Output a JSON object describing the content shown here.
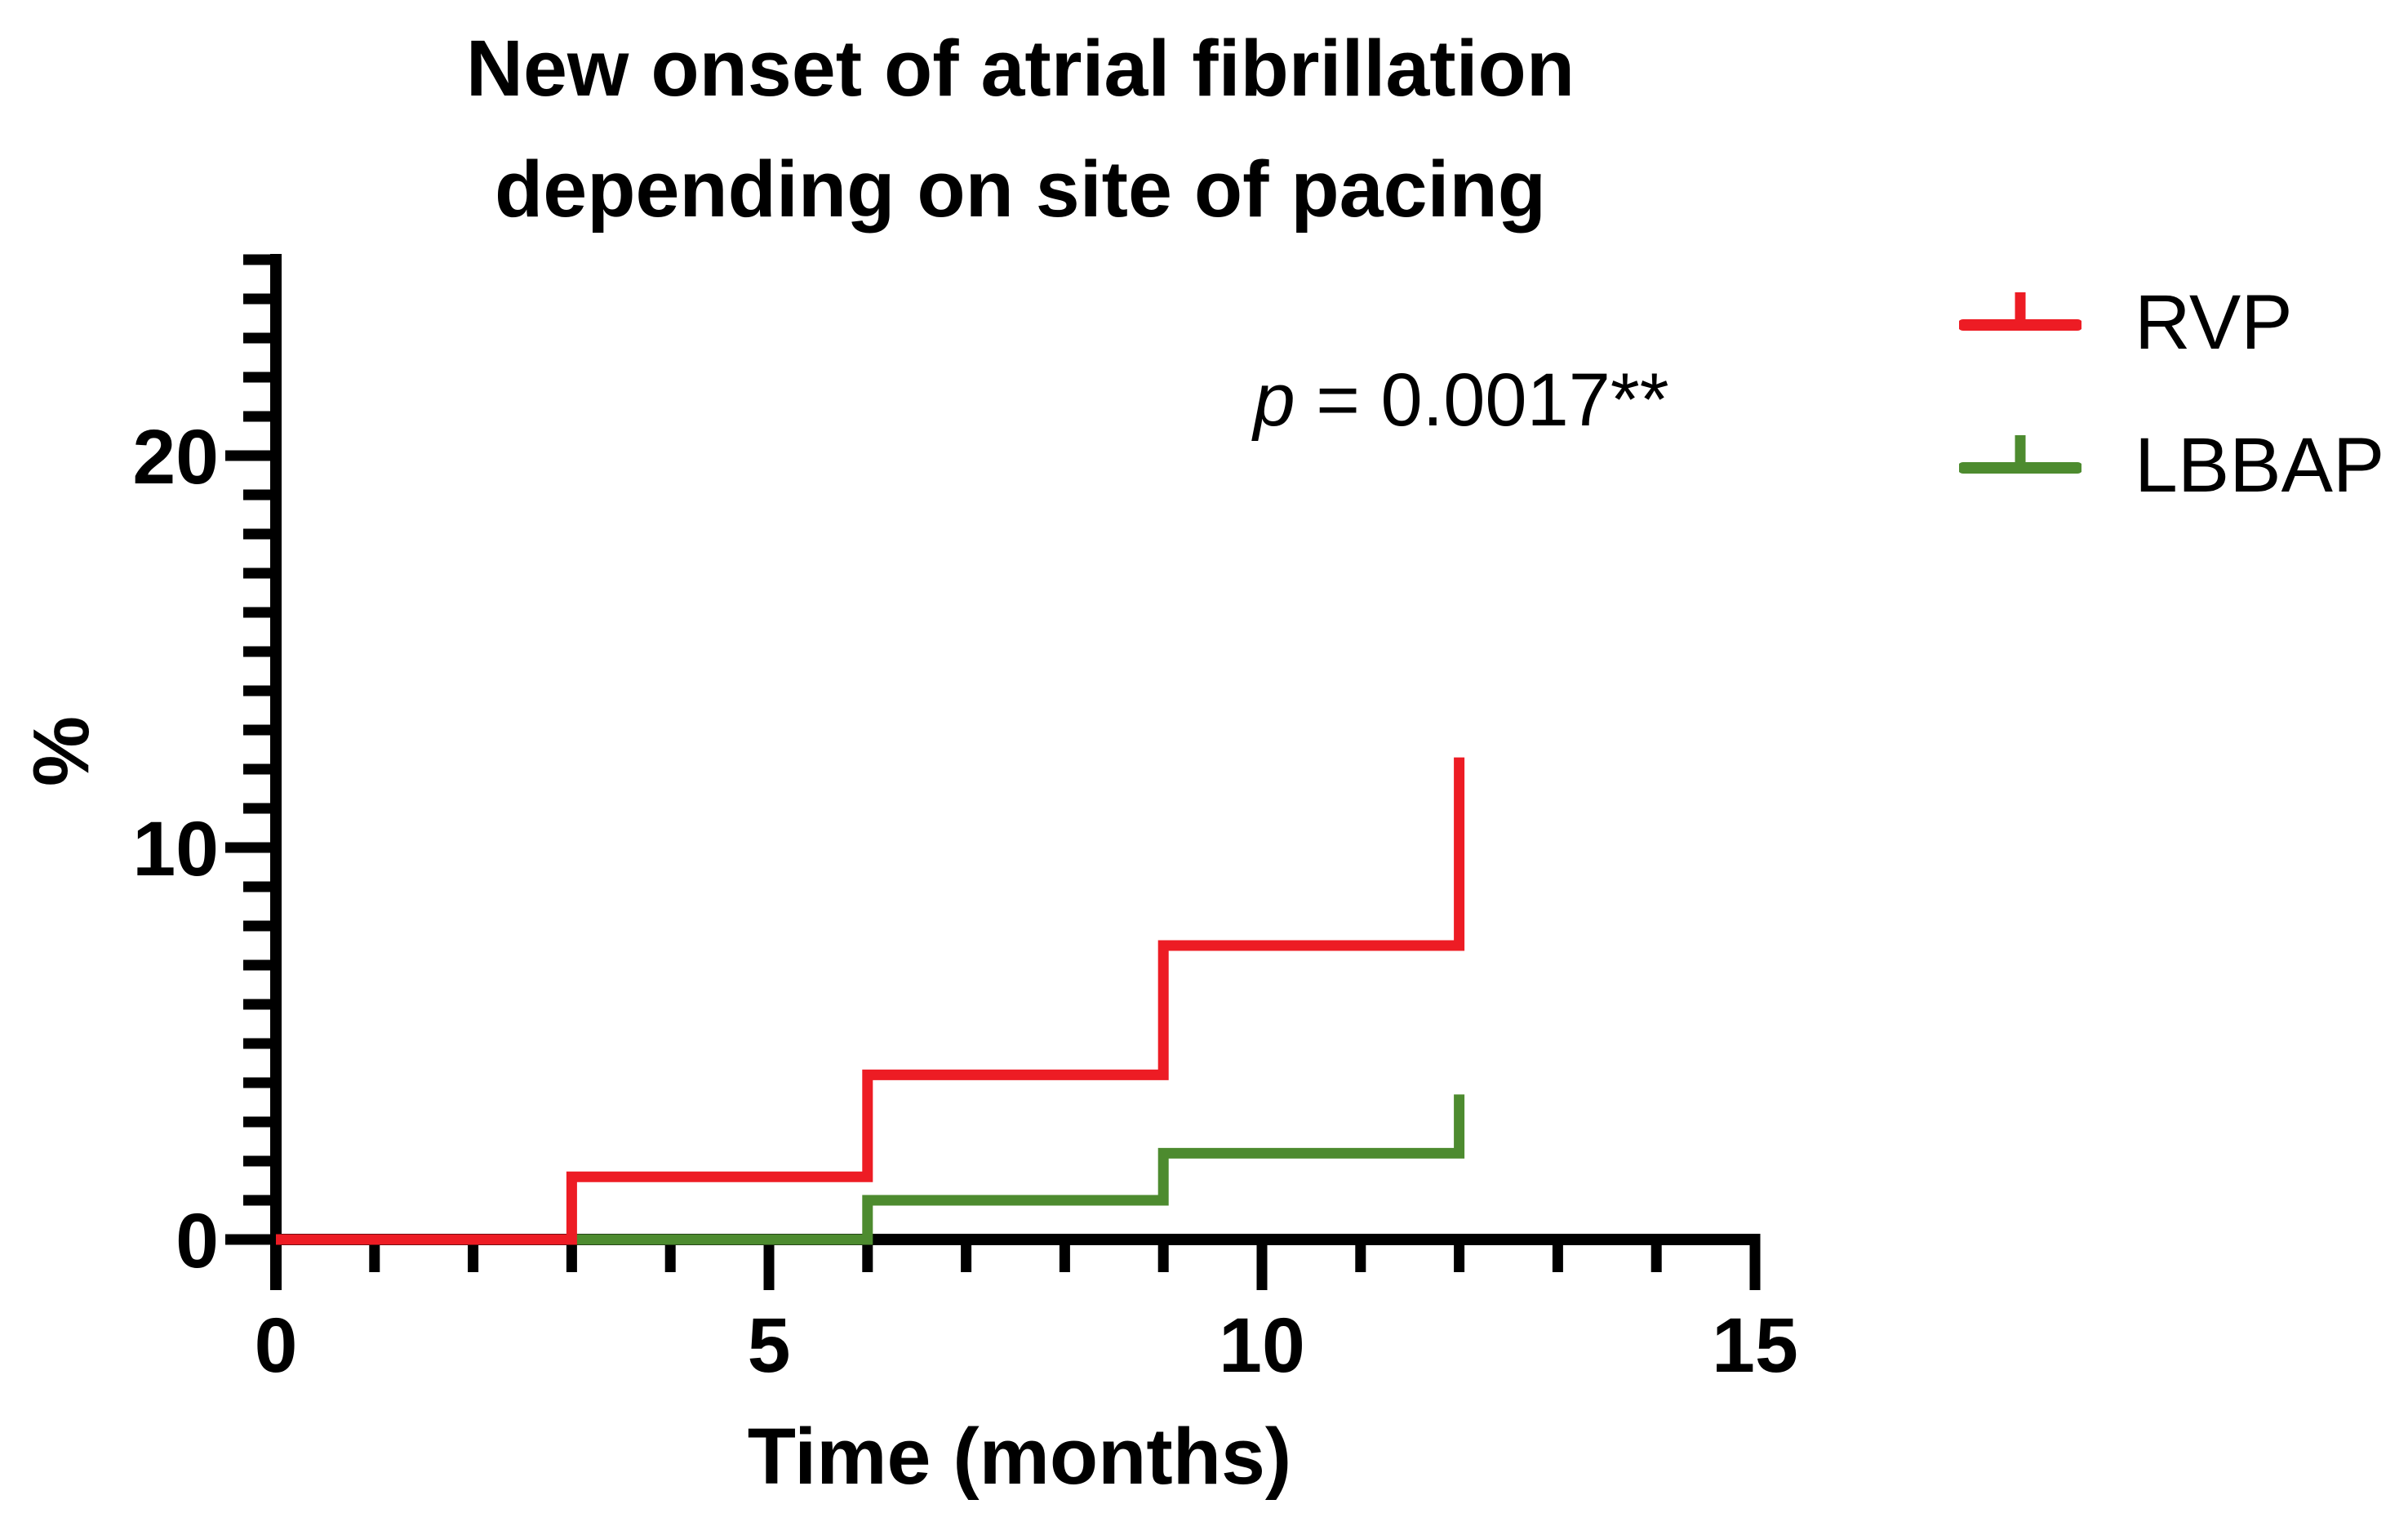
{
  "title": {
    "line1": "New onset of atrial fibrillation",
    "line2": "depending on site of pacing"
  },
  "annotation": {
    "p_symbol": "p",
    "p_rest": " = 0.0017**"
  },
  "chart_data": {
    "type": "line",
    "subtype": "kaplan-meier-step-incidence",
    "title": "New onset of atrial fibrillation depending on site of pacing",
    "xlabel": "Time (months)",
    "ylabel": "%",
    "xlim": [
      0,
      15
    ],
    "ylim": [
      0,
      25
    ],
    "x_major_ticks": [
      0,
      5,
      10,
      15
    ],
    "x_minor_tick_every": 1,
    "y_major_ticks": [
      0,
      10,
      20
    ],
    "y_minor_tick_every": 1,
    "grid": false,
    "legend_position": "top-right",
    "annotation": "p = 0.0017**",
    "axis_color": "#000000",
    "series": [
      {
        "name": "RVP",
        "color": "#ED1C24",
        "x": [
          0,
          3,
          6,
          9,
          12
        ],
        "y": [
          0,
          1.6,
          4.2,
          7.5,
          12.3
        ]
      },
      {
        "name": "LBBAP",
        "color": "#4D8B2F",
        "x": [
          0,
          6,
          9,
          12
        ],
        "y": [
          0,
          1.0,
          2.2,
          3.7
        ]
      }
    ]
  }
}
